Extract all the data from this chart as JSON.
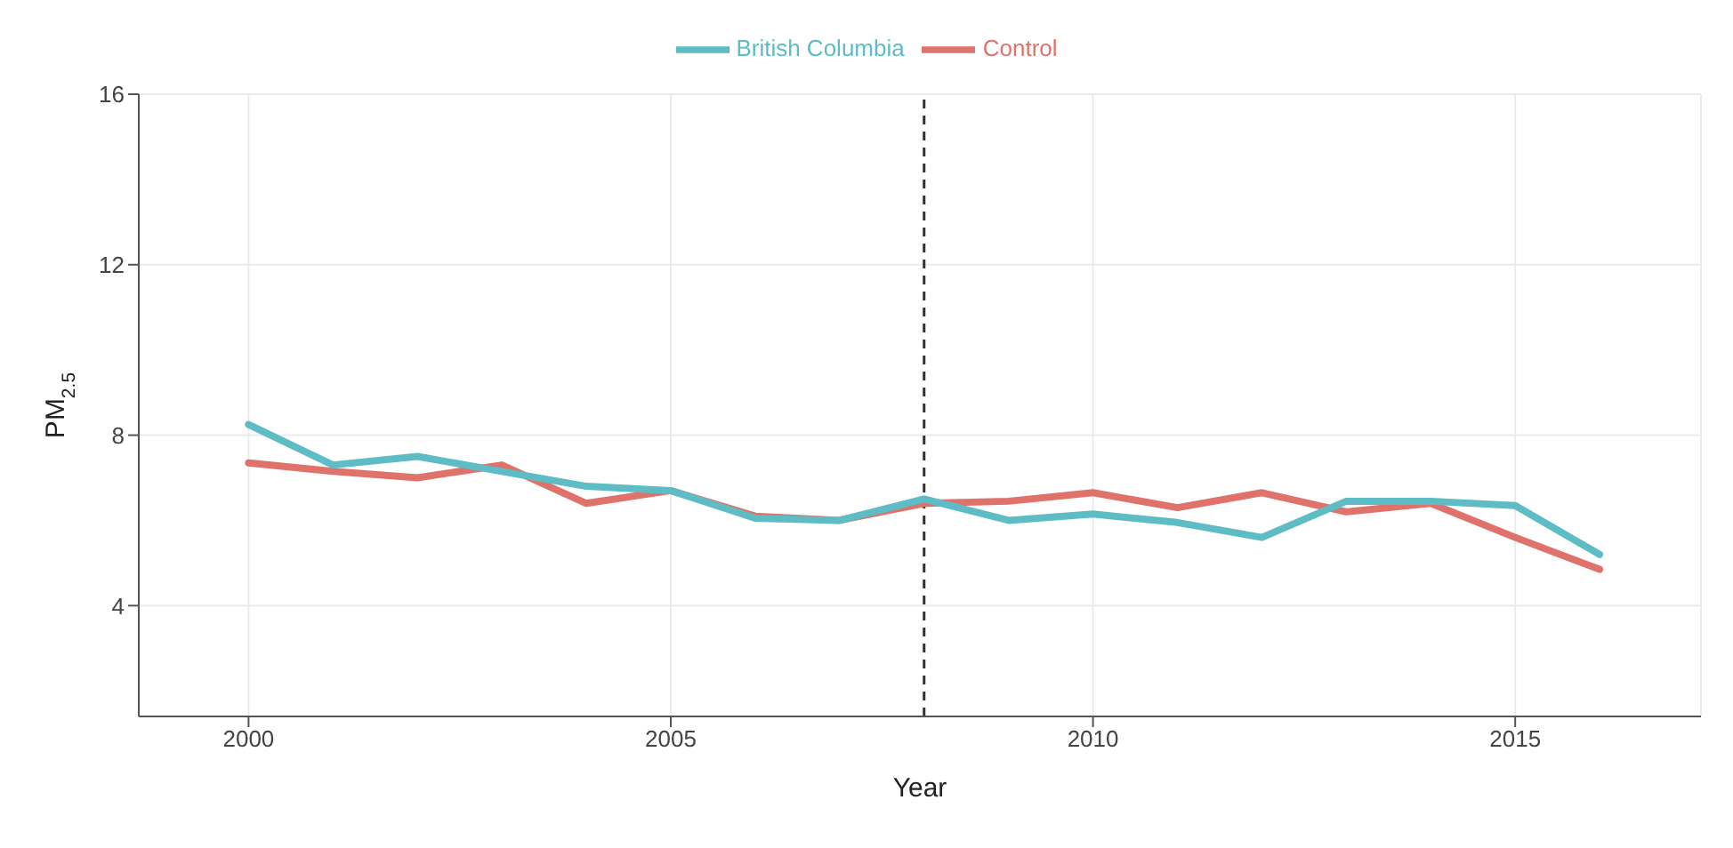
{
  "chart_data": {
    "type": "line",
    "xlabel": "Year",
    "ylabel": "PM$_{2.5}$",
    "x": [
      2000,
      2001,
      2002,
      2003,
      2004,
      2005,
      2006,
      2007,
      2008,
      2009,
      2010,
      2011,
      2012,
      2013,
      2014,
      2015,
      2016
    ],
    "series": [
      {
        "name": "Control",
        "color": "#e0726c",
        "values": [
          7.35,
          7.15,
          7.0,
          7.3,
          6.4,
          6.7,
          6.1,
          6.0,
          6.4,
          6.45,
          6.65,
          6.3,
          6.65,
          6.2,
          6.4,
          5.6,
          4.85
        ]
      },
      {
        "name": "British Columbia",
        "color": "#5dbcc4",
        "values": [
          8.25,
          7.3,
          7.5,
          7.15,
          6.8,
          6.7,
          6.05,
          6.0,
          6.5,
          6.0,
          6.15,
          5.95,
          5.6,
          6.45,
          6.45,
          6.35,
          5.2
        ]
      }
    ],
    "xlim": [
      1998.7,
      2017.2
    ],
    "xticks": [
      2000,
      2005,
      2010,
      2015
    ],
    "ylim": [
      1.4,
      16
    ],
    "yticks": [
      4,
      8,
      12,
      16
    ],
    "ref_lines": [
      {
        "axis": "x",
        "value": 2008,
        "line_style": "dashed",
        "color": "#333333"
      }
    ],
    "grid": true,
    "legend": "top",
    "marker": "none",
    "line_style": "solid"
  }
}
